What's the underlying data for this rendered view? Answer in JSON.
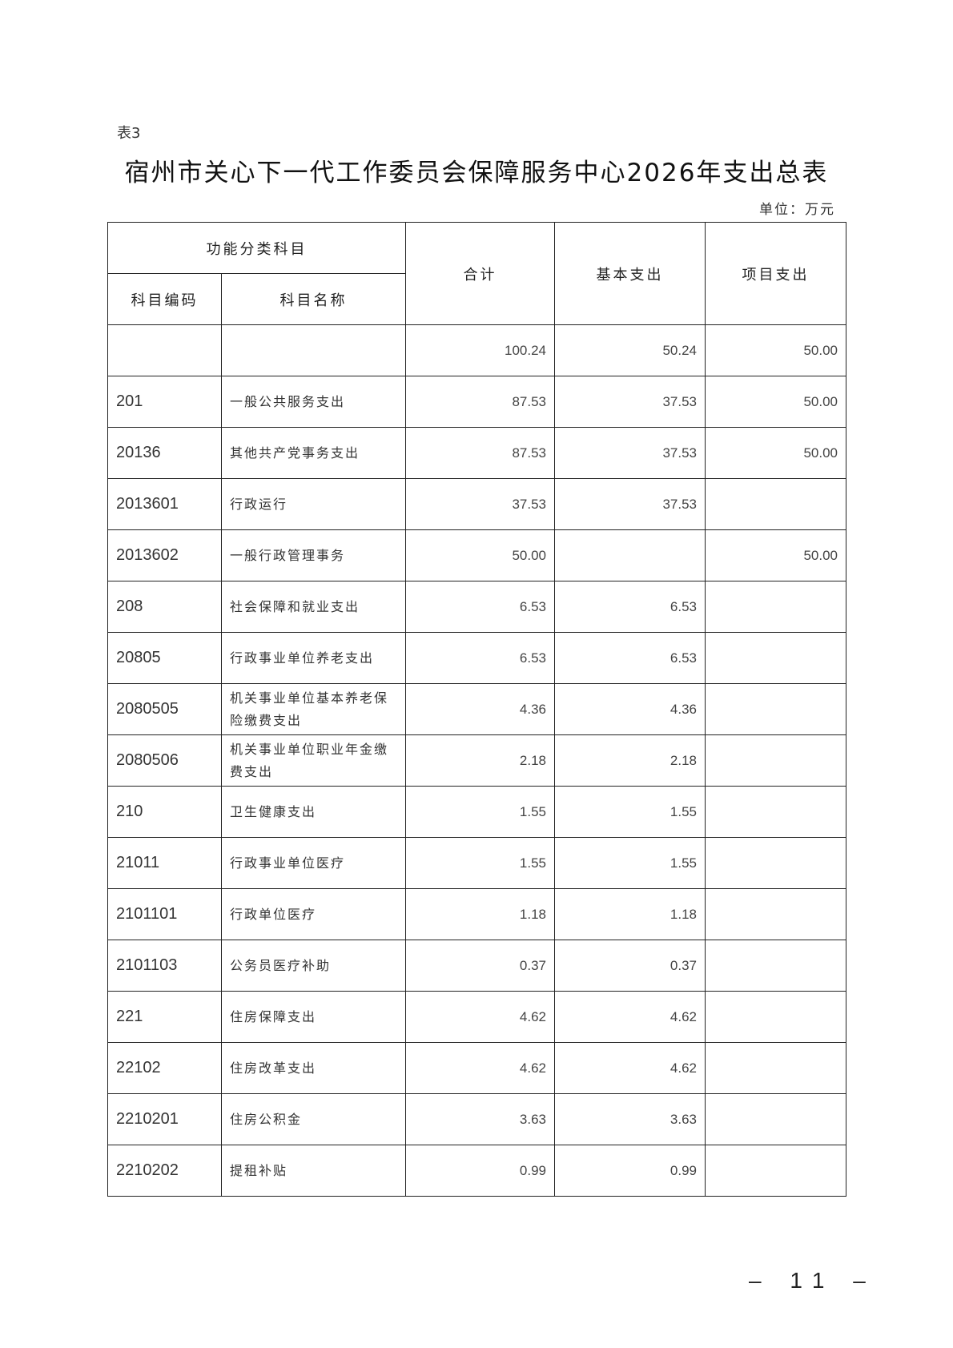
{
  "table_label": "表3",
  "title": "宿州市关心下一代工作委员会保障服务中心2026年支出总表",
  "unit": "单位：万元",
  "headers": {
    "group": "功能分类科目",
    "code": "科目编码",
    "name": "科目名称",
    "total": "合计",
    "basic": "基本支出",
    "project": "项目支出"
  },
  "rows": [
    {
      "code": "",
      "name": "",
      "total": "100.24",
      "basic": "50.24",
      "project": "50.00"
    },
    {
      "code": "201",
      "name": "一般公共服务支出",
      "total": "87.53",
      "basic": "37.53",
      "project": "50.00"
    },
    {
      "code": "20136",
      "name": "其他共产党事务支出",
      "total": "87.53",
      "basic": "37.53",
      "project": "50.00"
    },
    {
      "code": "2013601",
      "name": "行政运行",
      "total": "37.53",
      "basic": "37.53",
      "project": ""
    },
    {
      "code": "2013602",
      "name": "一般行政管理事务",
      "total": "50.00",
      "basic": "",
      "project": "50.00"
    },
    {
      "code": "208",
      "name": "社会保障和就业支出",
      "total": "6.53",
      "basic": "6.53",
      "project": ""
    },
    {
      "code": "20805",
      "name": "行政事业单位养老支出",
      "total": "6.53",
      "basic": "6.53",
      "project": ""
    },
    {
      "code": "2080505",
      "name": "机关事业单位基本养老保险缴费支出",
      "total": "4.36",
      "basic": "4.36",
      "project": ""
    },
    {
      "code": "2080506",
      "name": "机关事业单位职业年金缴费支出",
      "total": "2.18",
      "basic": "2.18",
      "project": ""
    },
    {
      "code": "210",
      "name": "卫生健康支出",
      "total": "1.55",
      "basic": "1.55",
      "project": ""
    },
    {
      "code": "21011",
      "name": "行政事业单位医疗",
      "total": "1.55",
      "basic": "1.55",
      "project": ""
    },
    {
      "code": "2101101",
      "name": "行政单位医疗",
      "total": "1.18",
      "basic": "1.18",
      "project": ""
    },
    {
      "code": "2101103",
      "name": "公务员医疗补助",
      "total": "0.37",
      "basic": "0.37",
      "project": ""
    },
    {
      "code": "221",
      "name": "住房保障支出",
      "total": "4.62",
      "basic": "4.62",
      "project": ""
    },
    {
      "code": "22102",
      "name": "住房改革支出",
      "total": "4.62",
      "basic": "4.62",
      "project": ""
    },
    {
      "code": "2210201",
      "name": "住房公积金",
      "total": "3.63",
      "basic": "3.63",
      "project": ""
    },
    {
      "code": "2210202",
      "name": "提租补贴",
      "total": "0.99",
      "basic": "0.99",
      "project": ""
    }
  ],
  "page_number": "– 11 –"
}
